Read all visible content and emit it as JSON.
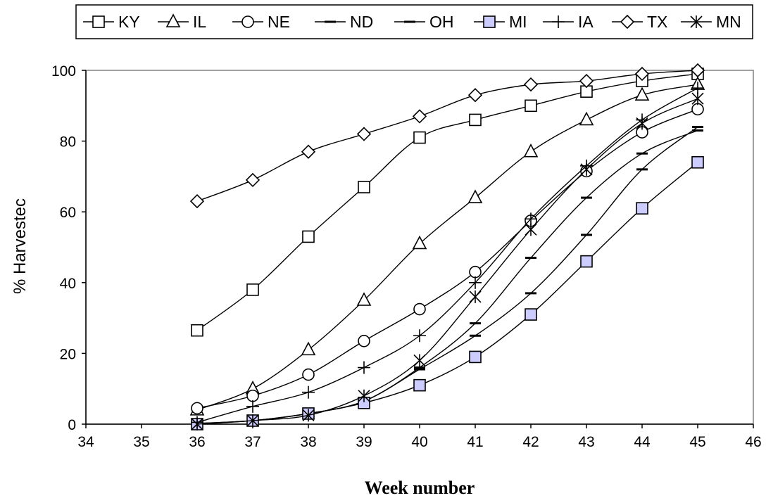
{
  "chart_data": {
    "type": "line",
    "xlabel": "Week number",
    "ylabel": "% Harvestec",
    "xlim": [
      34,
      46
    ],
    "ylim": [
      0,
      100
    ],
    "xticks": [
      34,
      35,
      36,
      37,
      38,
      39,
      40,
      41,
      42,
      43,
      44,
      45,
      46
    ],
    "yticks": [
      0,
      20,
      40,
      60,
      80,
      100
    ],
    "grid": false,
    "legend_position": "top",
    "x": [
      36,
      37,
      38,
      39,
      40,
      41,
      42,
      43,
      44,
      45
    ],
    "series": [
      {
        "name": "KY",
        "marker": "square",
        "values": [
          26.5,
          38,
          53,
          67,
          81,
          86,
          90,
          94,
          97,
          99
        ]
      },
      {
        "name": "IL",
        "marker": "triangle",
        "values": [
          4,
          10,
          21,
          35,
          51,
          64,
          77,
          86,
          93,
          96
        ]
      },
      {
        "name": "NE",
        "marker": "circle",
        "values": [
          4.5,
          8,
          14,
          23.5,
          32.5,
          43,
          57.5,
          71.5,
          82.5,
          89
        ]
      },
      {
        "name": "ND",
        "marker": "dash",
        "values": [
          0.2,
          1,
          3,
          6.5,
          16,
          28.5,
          47,
          64,
          76.5,
          83
        ]
      },
      {
        "name": "OH",
        "marker": "dash",
        "values": [
          0.2,
          1,
          3,
          6.5,
          15.5,
          25,
          37,
          53.5,
          72,
          84
        ]
      },
      {
        "name": "MI",
        "marker": "filled-square",
        "values": [
          0,
          1,
          3,
          6,
          11,
          19,
          31,
          46,
          61,
          74
        ]
      },
      {
        "name": "IA",
        "marker": "plus",
        "values": [
          0.5,
          5,
          9,
          16,
          25,
          40,
          58,
          73,
          86,
          95
        ]
      },
      {
        "name": "TX",
        "marker": "diamond",
        "values": [
          63,
          69,
          77,
          82,
          87,
          93,
          96,
          97,
          99,
          100
        ]
      },
      {
        "name": "MN",
        "marker": "star",
        "values": [
          0,
          1,
          2.5,
          8,
          18,
          36,
          55,
          72,
          85,
          92
        ]
      }
    ]
  }
}
